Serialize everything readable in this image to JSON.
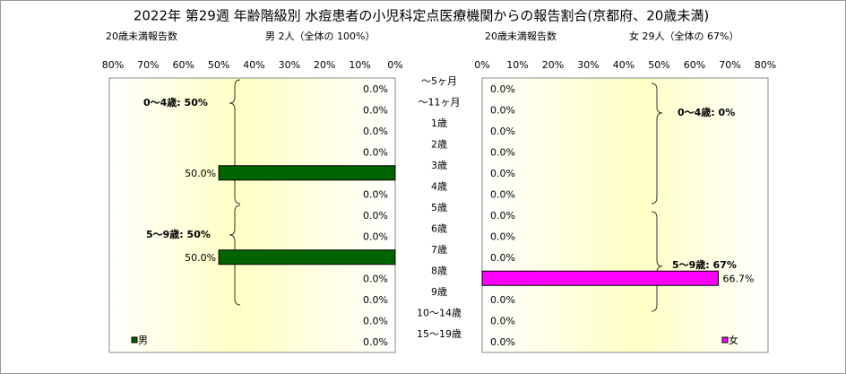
{
  "title": "2022年 第29週 年齢階級別 水痘患者の小児科定点医療機関からの報告割合(京都府、20歳未満)",
  "categories": [
    "〜5ヶ月",
    "〜11ヶ月",
    "1歳",
    "2歳",
    "3歳",
    "4歳",
    "5歳",
    "6歳",
    "7歳",
    "8歳",
    "9歳",
    "10〜14歳",
    "15〜19歳"
  ],
  "chart_data": [
    {
      "type": "bar",
      "orientation": "horizontal",
      "x_reversed": true,
      "header_left": "20歳未満報告数",
      "header_right": "男 2人（全体の 100%）",
      "xlim": [
        0,
        80
      ],
      "xticks": [
        {
          "value": 80,
          "label": "80%"
        },
        {
          "value": 70,
          "label": "70%"
        },
        {
          "value": 60,
          "label": "60%"
        },
        {
          "value": 50,
          "label": "50%"
        },
        {
          "value": 40,
          "label": "40%"
        },
        {
          "value": 30,
          "label": "30%"
        },
        {
          "value": 20,
          "label": "20%"
        },
        {
          "value": 10,
          "label": "10%"
        },
        {
          "value": 0,
          "label": "0%"
        }
      ],
      "series": [
        {
          "name": "男",
          "color": "#006400",
          "values": [
            0,
            0,
            0,
            0,
            50,
            0,
            0,
            0,
            50,
            0,
            0,
            0,
            0
          ],
          "value_labels": [
            "0.0%",
            "0.0%",
            "0.0%",
            "0.0%",
            "50.0%",
            "0.0%",
            "0.0%",
            "0.0%",
            "50.0%",
            "0.0%",
            "0.0%",
            "0.0%",
            "0.0%"
          ]
        }
      ],
      "annotations": [
        "0〜4歳: 50%",
        "5〜9歳: 50%"
      ]
    },
    {
      "type": "bar",
      "orientation": "horizontal",
      "x_reversed": false,
      "header_left": "20歳未満報告数",
      "header_right": "女 29人（全体の 67%）",
      "xlim": [
        0,
        80
      ],
      "xticks": [
        {
          "value": 0,
          "label": "0%"
        },
        {
          "value": 10,
          "label": "10%"
        },
        {
          "value": 20,
          "label": "20%"
        },
        {
          "value": 30,
          "label": "30%"
        },
        {
          "value": 40,
          "label": "40%"
        },
        {
          "value": 50,
          "label": "50%"
        },
        {
          "value": 60,
          "label": "60%"
        },
        {
          "value": 70,
          "label": "70%"
        },
        {
          "value": 80,
          "label": "80%"
        }
      ],
      "series": [
        {
          "name": "女",
          "color": "#ff00ff",
          "values": [
            0,
            0,
            0,
            0,
            0,
            0,
            0,
            0,
            0,
            66.7,
            0,
            0,
            0
          ],
          "value_labels": [
            "0.0%",
            "0.0%",
            "0.0%",
            "0.0%",
            "0.0%",
            "0.0%",
            "0.0%",
            "0.0%",
            "0.0%",
            "66.7%",
            "0.0%",
            "0.0%",
            "0.0%"
          ]
        }
      ],
      "annotations": [
        "0〜4歳: 0%",
        "5〜9歳: 67%"
      ]
    }
  ]
}
